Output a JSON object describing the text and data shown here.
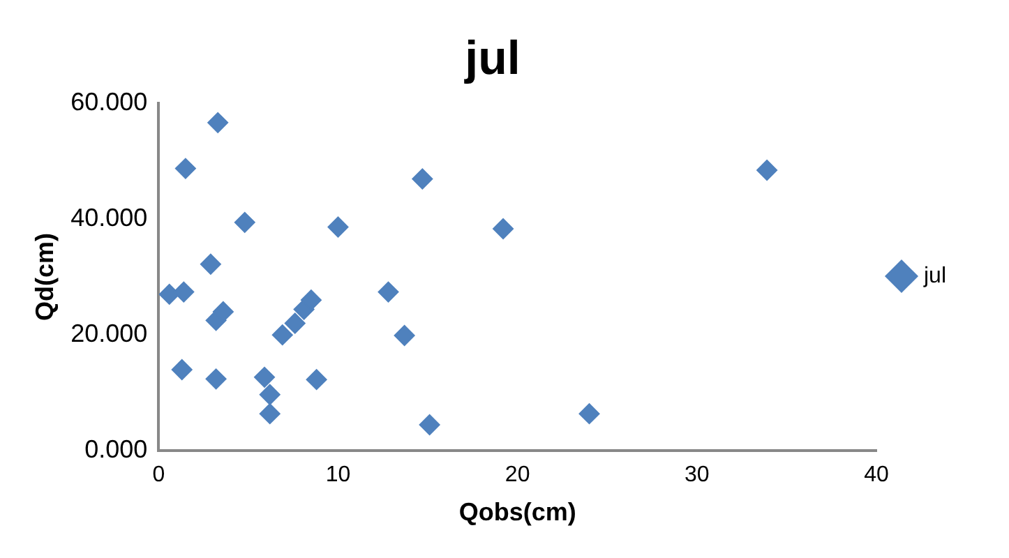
{
  "chart_data": {
    "type": "scatter",
    "title": "jul",
    "xlabel": "Qobs(cm)",
    "ylabel": "Qd(cm)",
    "xlim": [
      0,
      40
    ],
    "xticks": [
      0,
      10,
      20,
      30,
      40
    ],
    "ylim": [
      0,
      60
    ],
    "yticks": [
      {
        "value": 0,
        "label": "0.000"
      },
      {
        "value": 20,
        "label": "20.000"
      },
      {
        "value": 40,
        "label": "40.000"
      },
      {
        "value": 60,
        "label": "60.000"
      }
    ],
    "grid": false,
    "legend": "right",
    "marker": "diamond",
    "series": [
      {
        "name": "jul",
        "color": "#4f81bd",
        "x": [
          0.6,
          1.4,
          1.5,
          3.3,
          1.3,
          2.9,
          4.8,
          3.2,
          3.6,
          3.2,
          5.9,
          6.2,
          6.2,
          6.9,
          7.6,
          8.1,
          8.5,
          8.8,
          10,
          12.8,
          13.7,
          19.2,
          14.7,
          15.1,
          24,
          33.9
        ],
        "values": [
          27,
          27.4,
          48.7,
          56.6,
          14,
          32.2,
          39.4,
          22.5,
          24,
          12.4,
          12.7,
          9.7,
          6.4,
          20,
          22,
          24.4,
          26,
          12.3,
          38.6,
          27.4,
          19.9,
          38.3,
          46.9,
          4.5,
          6.4,
          48.4
        ]
      }
    ]
  }
}
